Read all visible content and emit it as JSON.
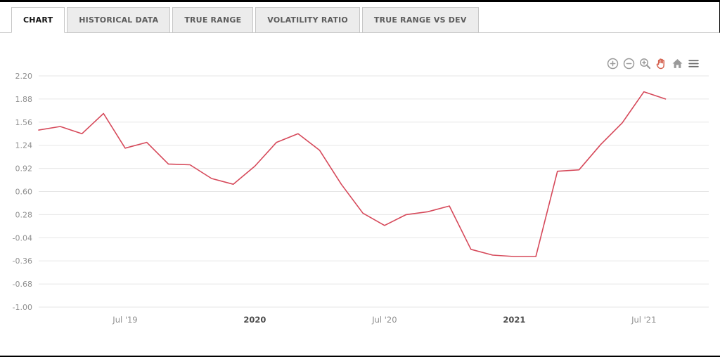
{
  "tabs": [
    {
      "label": "CHART",
      "active": true
    },
    {
      "label": "HISTORICAL DATA",
      "active": false
    },
    {
      "label": "TRUE RANGE",
      "active": false
    },
    {
      "label": "VOLATILITY RATIO",
      "active": false
    },
    {
      "label": "TRUE RANGE VS DEV",
      "active": false
    }
  ],
  "toolbar": {
    "icons": [
      {
        "name": "zoom-in"
      },
      {
        "name": "zoom-out"
      },
      {
        "name": "zoom-magnifier"
      },
      {
        "name": "pan-hand",
        "active": true
      },
      {
        "name": "reset-home"
      },
      {
        "name": "menu"
      }
    ],
    "icon_color": "#9a9a9a",
    "active_icon_color": "#d4604d"
  },
  "chart_data": {
    "type": "line",
    "title": "",
    "xlabel": "",
    "ylabel": "",
    "legend": "none",
    "grid": "horizontal-only",
    "grid_color": "#e6e6e6",
    "tick_label_color": "#8f8f8f",
    "major_tick_label_color": "#4d4d4d",
    "ylim": [
      -1.0,
      2.2
    ],
    "y_ticks": [
      "2.20",
      "1.88",
      "1.56",
      "1.24",
      "0.92",
      "0.60",
      "0.28",
      "-0.04",
      "-0.36",
      "-0.68",
      "-1.00"
    ],
    "x": [
      "2019-03",
      "2019-04",
      "2019-05",
      "2019-06",
      "2019-07",
      "2019-08",
      "2019-09",
      "2019-10",
      "2019-11",
      "2019-12",
      "2020-01",
      "2020-02",
      "2020-03",
      "2020-04",
      "2020-05",
      "2020-06",
      "2020-07",
      "2020-08",
      "2020-09",
      "2020-10",
      "2020-11",
      "2020-12",
      "2021-01",
      "2021-02",
      "2021-03",
      "2021-04",
      "2021-05",
      "2021-06",
      "2021-07",
      "2021-08"
    ],
    "x_ticks": [
      {
        "month": "2019-07",
        "label": "Jul '19",
        "major": false
      },
      {
        "month": "2020-01",
        "label": "2020",
        "major": true
      },
      {
        "month": "2020-07",
        "label": "Jul '20",
        "major": false
      },
      {
        "month": "2021-01",
        "label": "2021",
        "major": true
      },
      {
        "month": "2021-07",
        "label": "Jul '21",
        "major": false
      }
    ],
    "x_index_range": [
      0,
      31
    ],
    "series": [
      {
        "name": "",
        "color": "#d6495a",
        "values": [
          1.45,
          1.5,
          1.4,
          1.68,
          1.2,
          1.28,
          0.98,
          0.97,
          0.78,
          0.7,
          0.95,
          1.28,
          1.4,
          1.17,
          0.7,
          0.3,
          0.13,
          0.28,
          0.32,
          0.4,
          -0.2,
          -0.28,
          -0.3,
          -0.3,
          0.88,
          0.9,
          1.25,
          1.55,
          1.98,
          1.88
        ]
      }
    ]
  }
}
